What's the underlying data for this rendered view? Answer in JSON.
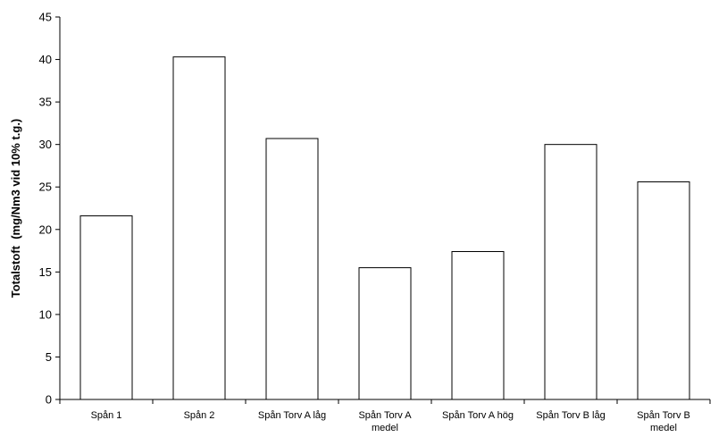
{
  "chart_data": {
    "type": "bar",
    "title": "",
    "xlabel": "",
    "ylabel": "Totalstoft  (mg/Nm3 vid 10% t.g.)",
    "categories": [
      [
        "Spån 1"
      ],
      [
        "Spån 2"
      ],
      [
        "Spån Torv A låg"
      ],
      [
        "Spån Torv A",
        "medel"
      ],
      [
        "Spån Torv A hög"
      ],
      [
        "Spån Torv B låg"
      ],
      [
        "Spån Torv B",
        "medel"
      ]
    ],
    "values": [
      21.6,
      40.3,
      30.7,
      15.5,
      17.4,
      30.0,
      25.6
    ],
    "ylim": [
      0,
      45
    ],
    "yticks": [
      0,
      5,
      10,
      15,
      20,
      25,
      30,
      35,
      40,
      45
    ],
    "grid": false,
    "legend": "none",
    "colors": {
      "bar_fill": "#ffffff",
      "bar_stroke": "#000000",
      "axis": "#000000"
    }
  }
}
